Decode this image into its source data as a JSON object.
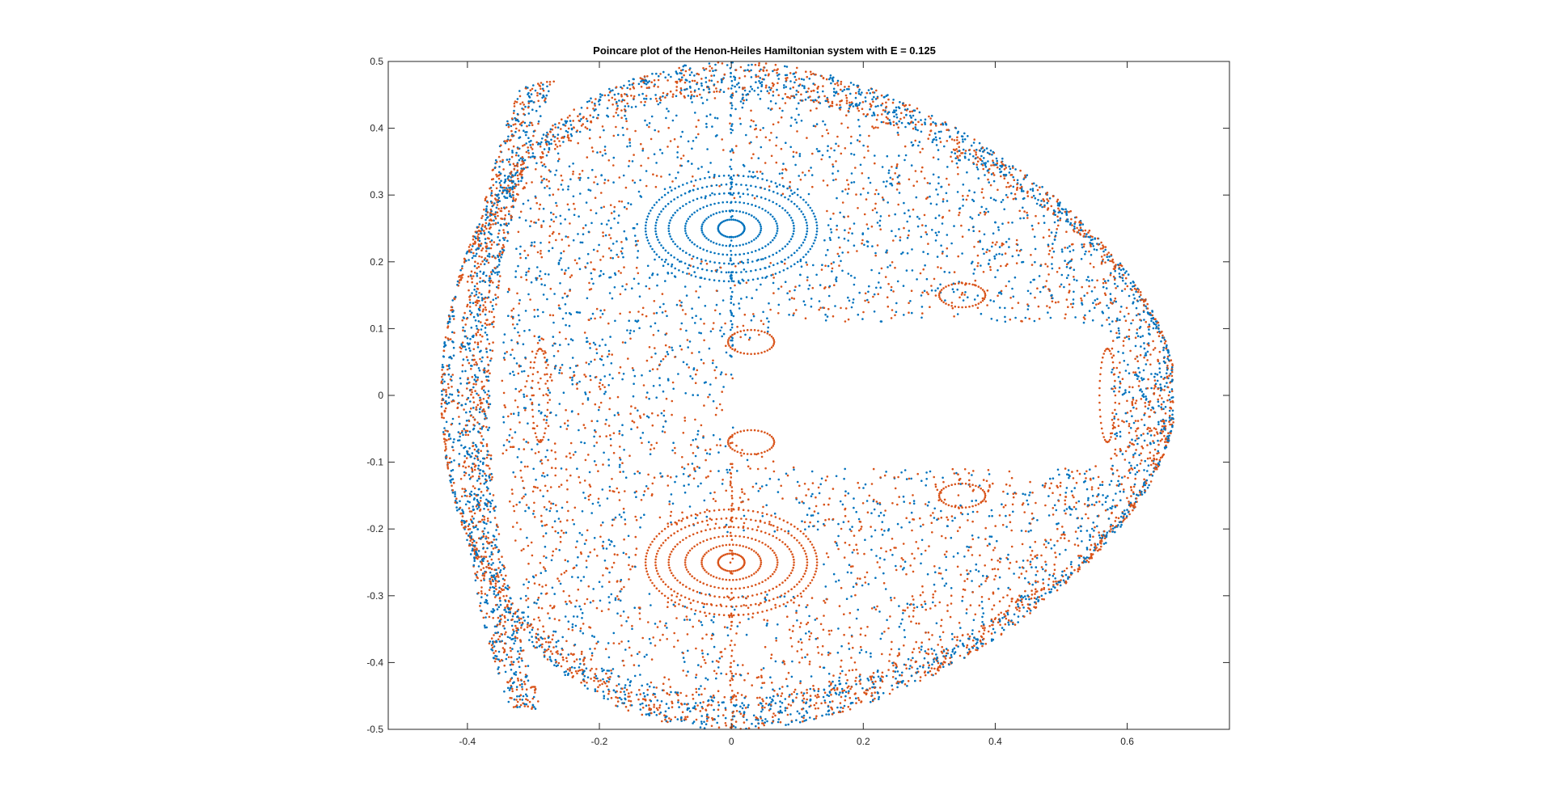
{
  "chart_data": {
    "type": "scatter",
    "title": "Poincare plot of the Henon-Heiles Hamiltonian system with E = 0.125",
    "xlabel": "",
    "ylabel": "",
    "xlim": [
      -0.52,
      0.755
    ],
    "ylim": [
      -0.5,
      0.5
    ],
    "x_ticks": [
      -0.4,
      -0.2,
      0,
      0.2,
      0.4,
      0.6
    ],
    "x_tick_labels": [
      "-0.4",
      "-0.2",
      "0",
      "0.2",
      "0.4",
      "0.6"
    ],
    "y_ticks": [
      0.5,
      0.4,
      0.3,
      0.2,
      0.1,
      0,
      -0.1,
      -0.2,
      -0.3,
      -0.4,
      -0.5
    ],
    "y_tick_labels": [
      "0.5",
      "0.4",
      "0.3",
      "0.2",
      "0.1",
      "0",
      "-0.1",
      "-0.2",
      "-0.3",
      "-0.4",
      "-0.5"
    ],
    "grid": false,
    "legend": "none",
    "series": [
      {
        "color": "#0072BD",
        "features": {
          "islands": [
            {
              "center": [
                0.0,
                0.25
              ],
              "rx": [
                0.02,
                0.045,
                0.07,
                0.095,
                0.115,
                0.13
              ],
              "ry": [
                0.006,
                0.012,
                0.018,
                0.024,
                0.03,
                0.036
              ]
            }
          ],
          "chaotic_sea_regions": [
            "upper half of outer sea",
            "outer crescent band",
            "inner scattered region"
          ]
        }
      },
      {
        "color": "#D95319",
        "features": {
          "islands": [
            {
              "center": [
                0.0,
                -0.25
              ],
              "rx": [
                0.02,
                0.045,
                0.07,
                0.095,
                0.115,
                0.13
              ],
              "ry": [
                0.006,
                0.012,
                0.018,
                0.024,
                0.03,
                0.036
              ]
            }
          ],
          "chaotic_sea_regions": [
            "lower half of outer sea",
            "outer crescent band",
            "inner scattered region"
          ]
        }
      }
    ],
    "boundary_curve": "energy contour 0.5*py^2 + 0.5*y^2 - y^3/3 = 0.125",
    "colors": {
      "blue": "#0072BD",
      "orange": "#D95319",
      "axes": "#262626"
    }
  }
}
